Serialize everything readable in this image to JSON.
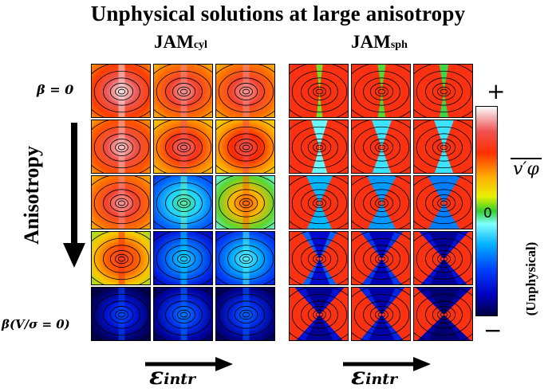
{
  "figure": {
    "title": "Unphysical solutions at large anisotropy",
    "panels": [
      {
        "main": "JAM",
        "sub": "cyl"
      },
      {
        "main": "JAM",
        "sub": "sph"
      }
    ],
    "row_top_label": "β = 0",
    "row_bottom_label": "β(V/σ = 0)",
    "vertical_label": "Anisotropy",
    "x_label": "ε",
    "x_label_sub": "intr",
    "colorbar": {
      "top_sign": "+",
      "bottom_sign": "−",
      "zero_label": "0",
      "quantity": "v′φ",
      "unphysical_label": "(Unphysical)",
      "colors": [
        "#000060",
        "#0000ff",
        "#0060ff",
        "#00c8ff",
        "#80ffff",
        "#40e040",
        "#ffff00",
        "#ff8000",
        "#ff0000",
        "#e06060",
        "#ffffff"
      ]
    }
  },
  "tiles": [
    {
      "panel": 0,
      "row": 0,
      "col": 0,
      "level": 0.9,
      "mode": "cyl"
    },
    {
      "panel": 0,
      "row": 0,
      "col": 1,
      "level": 0.85,
      "mode": "cyl"
    },
    {
      "panel": 0,
      "row": 0,
      "col": 2,
      "level": 0.85,
      "mode": "cyl"
    },
    {
      "panel": 0,
      "row": 1,
      "col": 0,
      "level": 0.88,
      "mode": "cyl"
    },
    {
      "panel": 0,
      "row": 1,
      "col": 1,
      "level": 0.82,
      "mode": "cyl"
    },
    {
      "panel": 0,
      "row": 1,
      "col": 2,
      "level": 0.8,
      "mode": "cyl"
    },
    {
      "panel": 0,
      "row": 2,
      "col": 0,
      "level": 0.85,
      "mode": "cyl"
    },
    {
      "panel": 0,
      "row": 2,
      "col": 1,
      "level": 0.4,
      "mode": "cyl"
    },
    {
      "panel": 0,
      "row": 2,
      "col": 2,
      "level": 0.65,
      "mode": "cyl"
    },
    {
      "panel": 0,
      "row": 3,
      "col": 0,
      "level": 0.75,
      "mode": "cyl"
    },
    {
      "panel": 0,
      "row": 3,
      "col": 1,
      "level": 0.3,
      "mode": "cyl"
    },
    {
      "panel": 0,
      "row": 3,
      "col": 2,
      "level": 0.35,
      "mode": "cyl"
    },
    {
      "panel": 0,
      "row": 4,
      "col": 0,
      "level": 0.15,
      "mode": "cyl"
    },
    {
      "panel": 0,
      "row": 4,
      "col": 1,
      "level": 0.2,
      "mode": "cyl"
    },
    {
      "panel": 0,
      "row": 4,
      "col": 2,
      "level": 0.18,
      "mode": "cyl"
    },
    {
      "panel": 1,
      "row": 0,
      "col": 0,
      "level": 0.9,
      "mode": "sph"
    },
    {
      "panel": 1,
      "row": 0,
      "col": 1,
      "level": 0.88,
      "mode": "sph"
    },
    {
      "panel": 1,
      "row": 0,
      "col": 2,
      "level": 0.86,
      "mode": "sph"
    },
    {
      "panel": 1,
      "row": 1,
      "col": 0,
      "level": 0.75,
      "mode": "sph"
    },
    {
      "panel": 1,
      "row": 1,
      "col": 1,
      "level": 0.7,
      "mode": "sph"
    },
    {
      "panel": 1,
      "row": 1,
      "col": 2,
      "level": 0.7,
      "mode": "sph"
    },
    {
      "panel": 1,
      "row": 2,
      "col": 0,
      "level": 0.6,
      "mode": "sph"
    },
    {
      "panel": 1,
      "row": 2,
      "col": 1,
      "level": 0.55,
      "mode": "sph"
    },
    {
      "panel": 1,
      "row": 2,
      "col": 2,
      "level": 0.5,
      "mode": "sph"
    },
    {
      "panel": 1,
      "row": 3,
      "col": 0,
      "level": 0.45,
      "mode": "sph"
    },
    {
      "panel": 1,
      "row": 3,
      "col": 1,
      "level": 0.35,
      "mode": "sph"
    },
    {
      "panel": 1,
      "row": 3,
      "col": 2,
      "level": 0.25,
      "mode": "sph"
    },
    {
      "panel": 1,
      "row": 4,
      "col": 0,
      "level": 0.25,
      "mode": "sph"
    },
    {
      "panel": 1,
      "row": 4,
      "col": 1,
      "level": 0.3,
      "mode": "sph"
    },
    {
      "panel": 1,
      "row": 4,
      "col": 2,
      "level": 0.15,
      "mode": "sph"
    }
  ]
}
